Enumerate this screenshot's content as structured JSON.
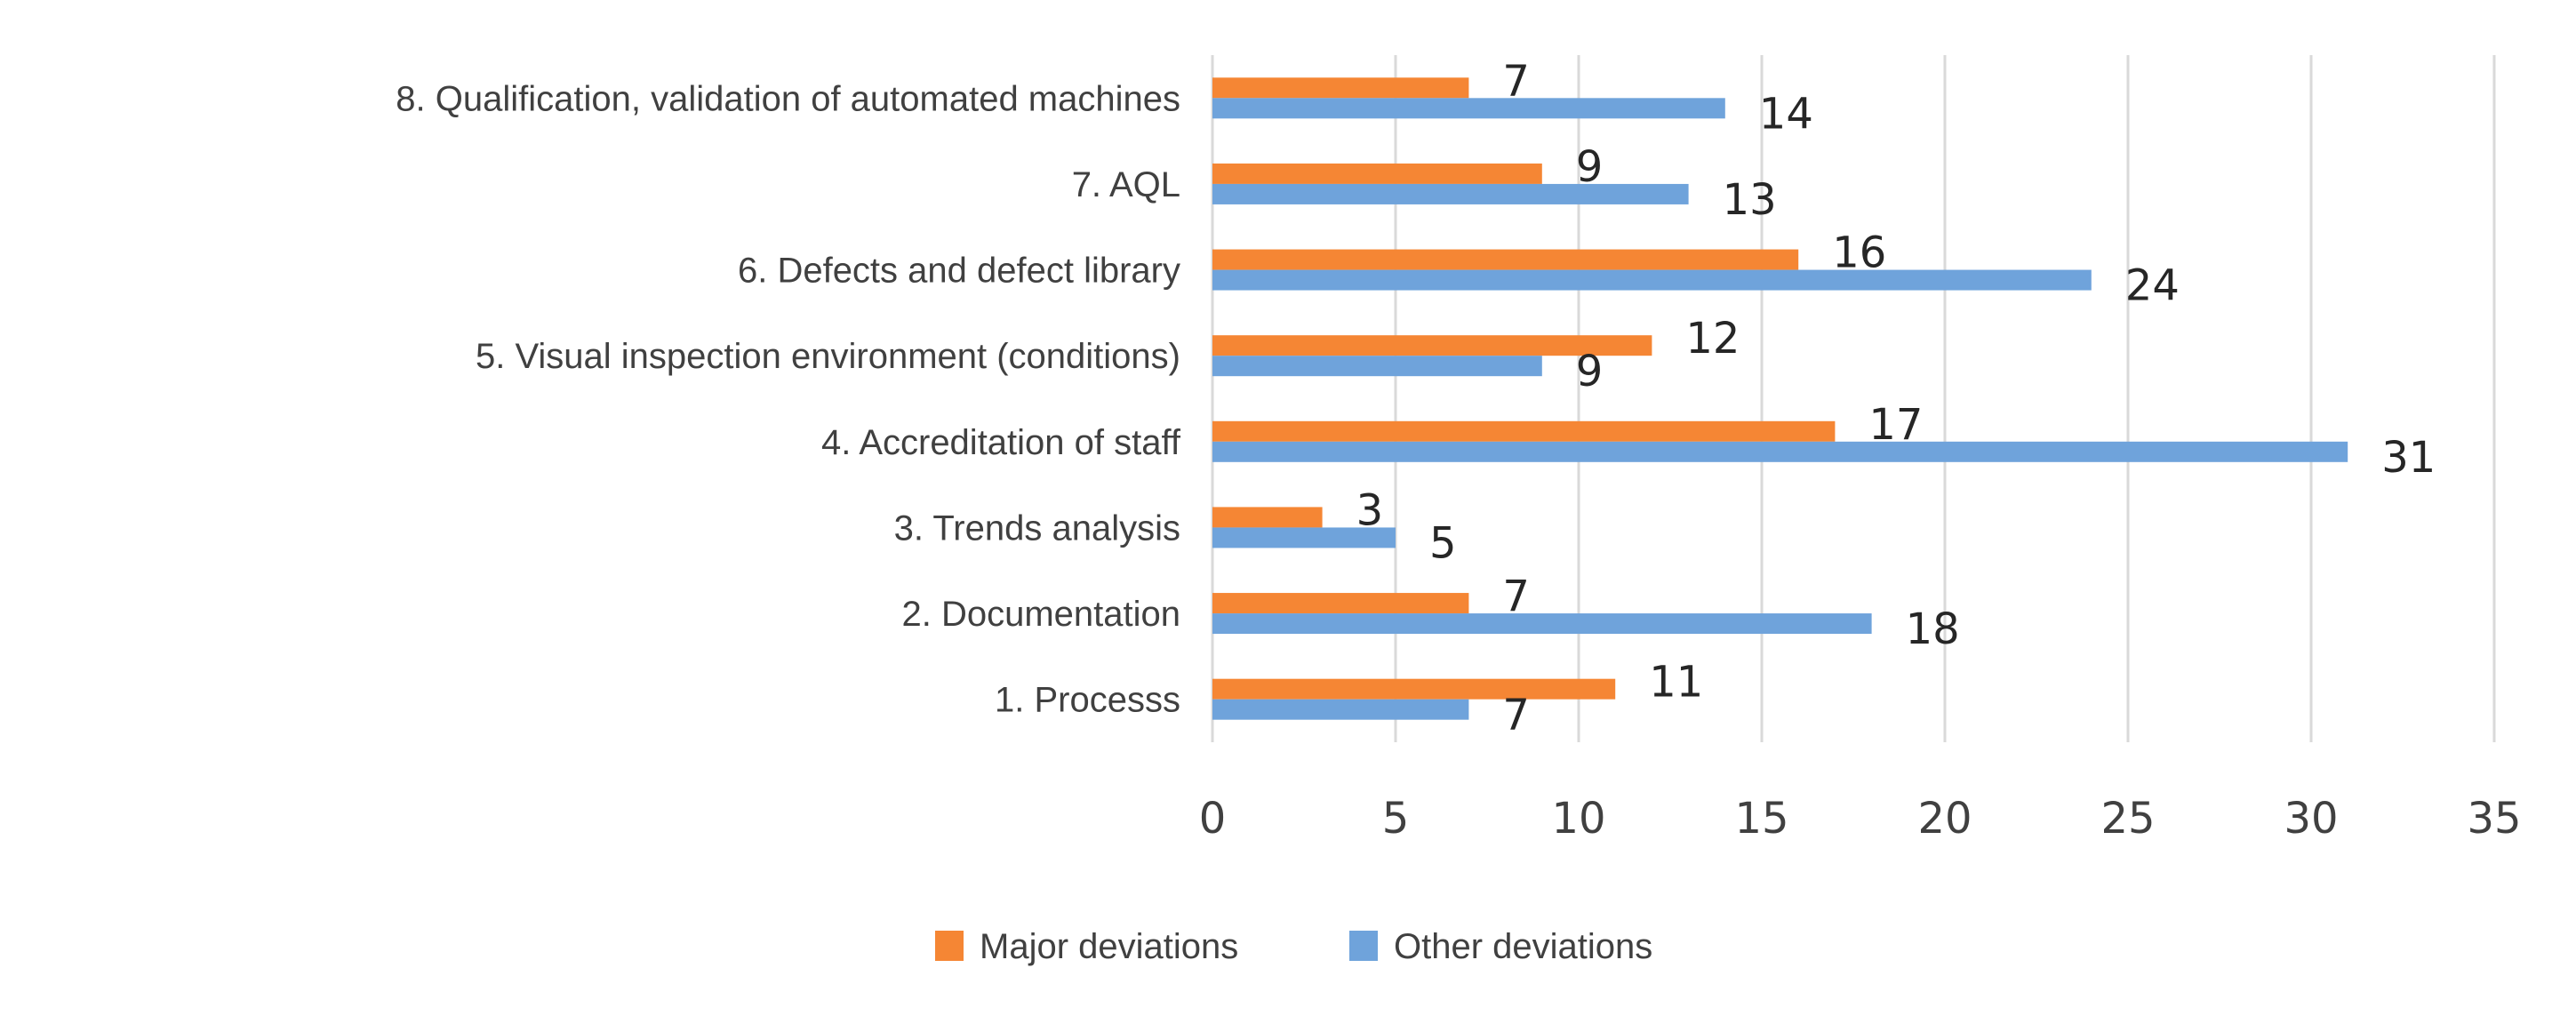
{
  "chart_data": {
    "type": "bar",
    "orientation": "horizontal",
    "categories": [
      "1. Processs",
      "2. Documentation",
      "3. Trends analysis",
      "4. Accreditation of staff",
      "5. Visual inspection environment (conditions)",
      "6. Defects and defect library",
      "7. AQL",
      "8. Qualification, validation of automated machines"
    ],
    "series": [
      {
        "name": "Major deviations",
        "color": "#F58634",
        "values": [
          11,
          7,
          3,
          17,
          12,
          16,
          9,
          7
        ]
      },
      {
        "name": "Other deviations",
        "color": "#6FA3DB",
        "values": [
          7,
          18,
          5,
          31,
          9,
          24,
          13,
          14
        ]
      }
    ],
    "xlim": [
      0,
      35
    ],
    "xticks": [
      "0",
      "5",
      "10",
      "15",
      "20",
      "25",
      "30",
      "35"
    ],
    "grid": true,
    "gridColor": "#D9D9D9",
    "legend_position": "bottom",
    "title": "",
    "xlabel": "",
    "ylabel": ""
  }
}
